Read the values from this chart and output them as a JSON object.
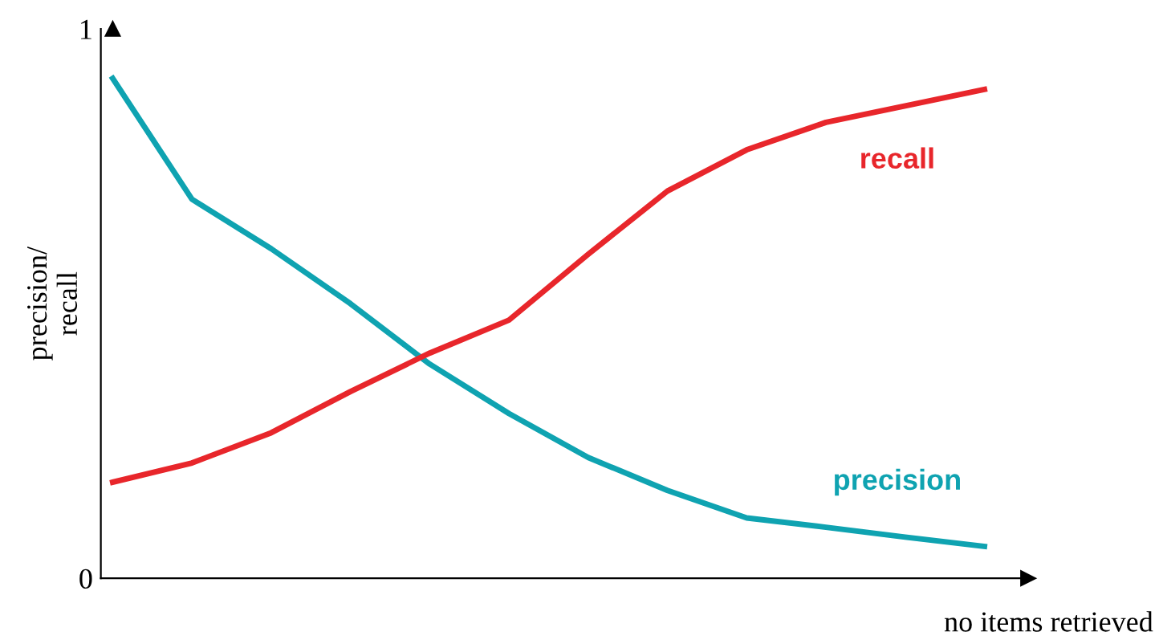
{
  "chart_data": {
    "type": "line",
    "xlabel": "no items retrieved",
    "ylabel": "precision/\nrecall",
    "categories": [
      null,
      null,
      null,
      null,
      null,
      null,
      null,
      null,
      null,
      null,
      null,
      null
    ],
    "series": [
      {
        "name": "precision",
        "color": "#0fa3b1",
        "values": [
          0.91,
          0.69,
          0.6,
          0.5,
          0.39,
          0.3,
          0.22,
          0.16,
          0.11,
          0.093,
          0.075,
          0.058
        ]
      },
      {
        "name": "recall",
        "color": "#e8262b",
        "values": [
          0.175,
          0.21,
          0.265,
          0.34,
          0.41,
          0.47,
          0.59,
          0.705,
          0.78,
          0.83,
          0.86,
          0.89
        ]
      }
    ],
    "ylim": [
      0,
      1
    ],
    "yticks": [
      0,
      1
    ],
    "tick_labels": "y",
    "grid": false,
    "legend": false,
    "marker": "none",
    "line_style": "solid"
  }
}
